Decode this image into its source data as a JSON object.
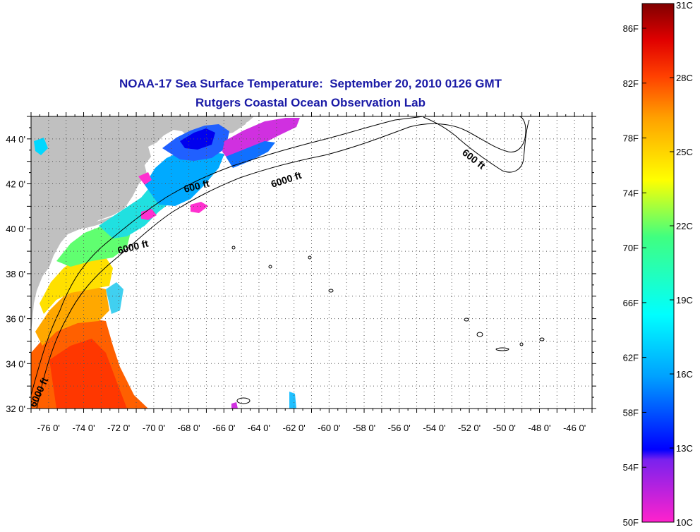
{
  "title": {
    "line1": "NOAA-17 Sea Surface Temperature:  September 20, 2010 0126 GMT",
    "line2": "Rutgers Coastal Ocean Observation Lab"
  },
  "map": {
    "lon_range": [
      -77,
      -45
    ],
    "lat_range": [
      32,
      45
    ],
    "lon_ticks": [
      "-76 0'",
      "-74 0'",
      "-72 0'",
      "-70 0'",
      "-68 0'",
      "-66 0'",
      "-64 0'",
      "-62 0'",
      "-60 0'",
      "-58 0'",
      "-56 0'",
      "-54 0'",
      "-52 0'",
      "-50 0'",
      "-48 0'",
      "-46 0'"
    ],
    "lat_ticks": [
      "44 0'",
      "42 0'",
      "40 0'",
      "38 0'",
      "36 0'",
      "34 0'",
      "32 0'"
    ],
    "grid": "dotted",
    "land_color": "#c0c0c0",
    "contour_labels": [
      "600 ft",
      "6000 ft",
      "6000 ft",
      "600 ft",
      "6000 ft"
    ]
  },
  "colorbar": {
    "fahrenheit_labels": [
      "86F",
      "82F",
      "78F",
      "74F",
      "70F",
      "66F",
      "62F",
      "58F",
      "54F",
      "50F"
    ],
    "celsius_labels": [
      "31C",
      "28C",
      "25C",
      "22C",
      "19C",
      "16C",
      "13C",
      "10C"
    ],
    "range_c": [
      10,
      31
    ],
    "colors": [
      "#ff22cc",
      "#7a22ee",
      "#0000ff",
      "#00a0ff",
      "#00ffff",
      "#40ff80",
      "#ffff00",
      "#ffa000",
      "#ff4000",
      "#e00000",
      "#800000"
    ]
  }
}
